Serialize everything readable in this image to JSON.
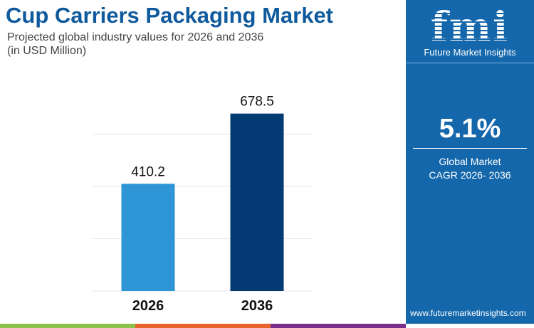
{
  "header": {
    "title": "Cup Carriers Packaging Market",
    "subtitle_line1": "Projected global industry values for 2026 and 2036",
    "subtitle_line2": "(in USD Million)"
  },
  "panel": {
    "logo_text": "fmi",
    "brand": "Future Market Insights",
    "cagr_value": "5.1%",
    "cagr_label1": "Global Market",
    "cagr_label2": "CAGR 2026- 2036",
    "url": "www.futuremarketinsights.com"
  },
  "colors": {
    "bar_2026": "#2e95d6",
    "bar_2036": "#033a73",
    "panel": "#1467ab",
    "title": "#0e5a9c",
    "stripes": [
      "#8bc34a",
      "#e8622c",
      "#7b2f8c"
    ]
  },
  "chart_data": {
    "type": "bar",
    "categories": [
      "2026",
      "2036"
    ],
    "values": [
      410.2,
      678.5
    ],
    "labels": [
      "410.2",
      "678.5"
    ],
    "ylim": [
      0,
      800
    ],
    "gridlines": [
      200,
      400,
      600
    ],
    "grid": true,
    "xlabel": "",
    "ylabel": ""
  }
}
